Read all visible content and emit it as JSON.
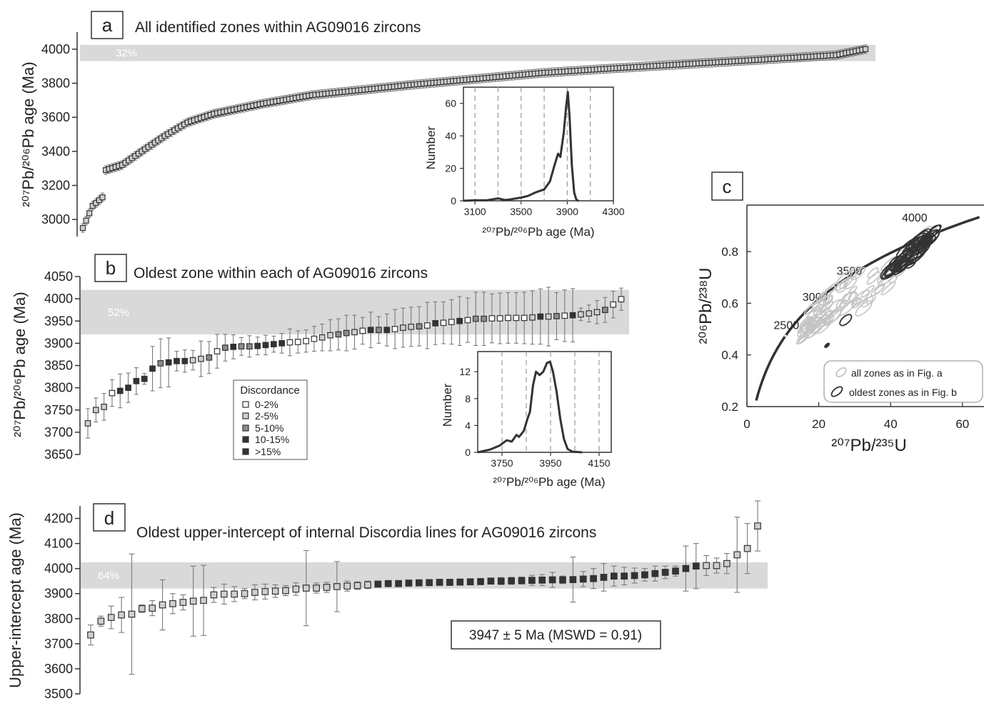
{
  "colors": {
    "band": "#d9d9d9",
    "axis": "#333333",
    "err": "#7a7a7a",
    "curve": "#333333",
    "c0": "#ffffff",
    "c1": "#cfcfcf",
    "c2": "#8c8c8c",
    "c3": "#333333",
    "ellLight": "#c4c4c4",
    "ellDark": "#333333"
  },
  "chart_data": [
    {
      "id": "a",
      "type": "scatter",
      "letter": "a",
      "title": "All identified zones within AG09016 zircons",
      "ylabel": "²⁰⁷Pb/²⁰⁶Pb age (Ma)",
      "ylim": [
        2900,
        4100
      ],
      "yticks": [
        {
          "v": 3000,
          "t": "3000"
        },
        {
          "v": 3200,
          "t": "3200"
        },
        {
          "v": 3400,
          "t": "3400"
        },
        {
          "v": 3600,
          "t": "3600"
        },
        {
          "v": 3800,
          "t": "3800"
        },
        {
          "v": 4000,
          "t": "4000"
        }
      ],
      "band": {
        "y0": 3930,
        "y1": 4025,
        "label": "32%"
      },
      "points_profile": {
        "n": 240,
        "curve": [
          [
            0,
            2950
          ],
          [
            3,
            3080
          ],
          [
            6,
            3130
          ],
          [
            7,
            3290
          ],
          [
            12,
            3320
          ],
          [
            18,
            3400
          ],
          [
            25,
            3490
          ],
          [
            32,
            3570
          ],
          [
            40,
            3620
          ],
          [
            55,
            3680
          ],
          [
            70,
            3730
          ],
          [
            100,
            3790
          ],
          [
            140,
            3860
          ],
          [
            160,
            3885
          ],
          [
            200,
            3930
          ],
          [
            230,
            3965
          ],
          [
            239,
            4000
          ]
        ],
        "err": 25
      },
      "inset": {
        "xlabel": "²⁰⁷Pb/²⁰⁶Pb age (Ma)",
        "ylabel": "Number",
        "xlim": [
          3000,
          4300
        ],
        "ylim": [
          0,
          70
        ],
        "xticks": [
          {
            "v": 3100,
            "t": "3100"
          },
          {
            "v": 3500,
            "t": "3500"
          },
          {
            "v": 3900,
            "t": "3900"
          },
          {
            "v": 4300,
            "t": "4300"
          }
        ],
        "yticks": [
          {
            "v": 0,
            "t": "0"
          },
          {
            "v": 20,
            "t": "20"
          },
          {
            "v": 40,
            "t": "40"
          },
          {
            "v": 60,
            "t": "60"
          }
        ],
        "dashed": [
          3100,
          3300,
          3500,
          3700,
          3900,
          4100
        ],
        "curve": [
          [
            3000,
            0
          ],
          [
            3100,
            0.3
          ],
          [
            3200,
            0.3
          ],
          [
            3300,
            1.5
          ],
          [
            3360,
            0.5
          ],
          [
            3400,
            0.8
          ],
          [
            3500,
            2
          ],
          [
            3560,
            3
          ],
          [
            3620,
            5
          ],
          [
            3700,
            7
          ],
          [
            3750,
            12
          ],
          [
            3790,
            22
          ],
          [
            3820,
            29
          ],
          [
            3840,
            27
          ],
          [
            3870,
            42
          ],
          [
            3890,
            58
          ],
          [
            3905,
            67
          ],
          [
            3920,
            52
          ],
          [
            3940,
            22
          ],
          [
            3960,
            5
          ],
          [
            3980,
            0.5
          ],
          [
            4000,
            0
          ]
        ]
      }
    },
    {
      "id": "b",
      "type": "scatter",
      "letter": "b",
      "title": "Oldest zone within each of AG09016 zircons",
      "ylabel": "²⁰⁷Pb/²⁰⁶Pb age (Ma)",
      "ylim": [
        3650,
        4050
      ],
      "yticks": [
        {
          "v": 3650,
          "t": "3650"
        },
        {
          "v": 3700,
          "t": "3700"
        },
        {
          "v": 3750,
          "t": "3750"
        },
        {
          "v": 3800,
          "t": "3800"
        },
        {
          "v": 3850,
          "t": "3850"
        },
        {
          "v": 3900,
          "t": "3900"
        },
        {
          "v": 3950,
          "t": "3950"
        },
        {
          "v": 4000,
          "t": "4000"
        },
        {
          "v": 4050,
          "t": "4050"
        }
      ],
      "band": {
        "y0": 3920,
        "y1": 4020,
        "label": "52%"
      },
      "points": [
        [
          3720,
          33,
          1
        ],
        [
          3750,
          27,
          1
        ],
        [
          3757,
          30,
          1
        ],
        [
          3788,
          30,
          0
        ],
        [
          3793,
          38,
          3
        ],
        [
          3800,
          33,
          4
        ],
        [
          3815,
          30,
          4
        ],
        [
          3820,
          12,
          3
        ],
        [
          3843,
          50,
          3
        ],
        [
          3855,
          55,
          2
        ],
        [
          3857,
          55,
          4
        ],
        [
          3860,
          22,
          4
        ],
        [
          3860,
          25,
          4
        ],
        [
          3862,
          22,
          1
        ],
        [
          3865,
          40,
          1
        ],
        [
          3868,
          36,
          2
        ],
        [
          3882,
          38,
          0
        ],
        [
          3890,
          30,
          2
        ],
        [
          3892,
          27,
          4
        ],
        [
          3893,
          20,
          2
        ],
        [
          3893,
          24,
          2
        ],
        [
          3894,
          20,
          3
        ],
        [
          3896,
          22,
          4
        ],
        [
          3898,
          18,
          4
        ],
        [
          3900,
          22,
          3
        ],
        [
          3902,
          30,
          0
        ],
        [
          3903,
          25,
          0
        ],
        [
          3905,
          25,
          0
        ],
        [
          3910,
          28,
          0
        ],
        [
          3913,
          30,
          1
        ],
        [
          3918,
          35,
          1
        ],
        [
          3920,
          35,
          2
        ],
        [
          3923,
          40,
          2
        ],
        [
          3925,
          38,
          1
        ],
        [
          3928,
          30,
          0
        ],
        [
          3930,
          40,
          3
        ],
        [
          3930,
          30,
          2
        ],
        [
          3930,
          36,
          3
        ],
        [
          3932,
          44,
          0
        ],
        [
          3935,
          44,
          1
        ],
        [
          3937,
          44,
          1
        ],
        [
          3938,
          44,
          2
        ],
        [
          3940,
          52,
          0
        ],
        [
          3945,
          48,
          3
        ],
        [
          3946,
          47,
          0
        ],
        [
          3948,
          50,
          0
        ],
        [
          3950,
          55,
          3
        ],
        [
          3952,
          50,
          0
        ],
        [
          3955,
          60,
          2
        ],
        [
          3955,
          60,
          2
        ],
        [
          3956,
          55,
          0
        ],
        [
          3956,
          57,
          0
        ],
        [
          3957,
          57,
          0
        ],
        [
          3957,
          57,
          0
        ],
        [
          3957,
          58,
          0
        ],
        [
          3958,
          60,
          1
        ],
        [
          3960,
          62,
          3
        ],
        [
          3960,
          66,
          1
        ],
        [
          3961,
          53,
          2
        ],
        [
          3962,
          58,
          0
        ],
        [
          3963,
          60,
          3
        ],
        [
          3965,
          14,
          1
        ],
        [
          3967,
          19,
          1
        ],
        [
          3970,
          26,
          1
        ],
        [
          3975,
          28,
          2
        ],
        [
          3987,
          30,
          0
        ],
        [
          3999,
          25,
          0
        ]
      ],
      "legend": {
        "title": "Discordance",
        "items": [
          "0-2%",
          "2-5%",
          "5-10%",
          "10-15%",
          ">15%"
        ]
      },
      "inset": {
        "xlabel": "²⁰⁷Pb/²⁰⁶Pb age (Ma)",
        "ylabel": "Number",
        "xlim": [
          3650,
          4200
        ],
        "ylim": [
          0,
          15
        ],
        "xticks": [
          {
            "v": 3750,
            "t": "3750"
          },
          {
            "v": 3950,
            "t": "3950"
          },
          {
            "v": 4150,
            "t": "4150"
          }
        ],
        "yticks": [
          {
            "v": 0,
            "t": "0"
          },
          {
            "v": 4,
            "t": "4"
          },
          {
            "v": 8,
            "t": "8"
          },
          {
            "v": 12,
            "t": "12"
          }
        ],
        "dashed": [
          3750,
          3850,
          3950,
          4050,
          4150
        ],
        "curve": [
          [
            3650,
            0
          ],
          [
            3700,
            0.4
          ],
          [
            3740,
            1
          ],
          [
            3770,
            1.8
          ],
          [
            3790,
            1.6
          ],
          [
            3810,
            2.6
          ],
          [
            3820,
            2.3
          ],
          [
            3840,
            3.2
          ],
          [
            3855,
            5
          ],
          [
            3865,
            6
          ],
          [
            3878,
            10
          ],
          [
            3890,
            12
          ],
          [
            3905,
            11.5
          ],
          [
            3920,
            12
          ],
          [
            3935,
            13.3
          ],
          [
            3948,
            13.5
          ],
          [
            3960,
            12
          ],
          [
            3975,
            9
          ],
          [
            3990,
            5
          ],
          [
            4005,
            2
          ],
          [
            4020,
            0.5
          ],
          [
            4040,
            0.1
          ],
          [
            4080,
            0
          ]
        ]
      }
    },
    {
      "id": "c",
      "type": "scatter",
      "letter": "c",
      "xlabel": "²⁰⁷Pb/²³⁵U",
      "ylabel": "²⁰⁶Pb/²³⁸U",
      "xlim": [
        0,
        66
      ],
      "ylim": [
        0.2,
        0.98
      ],
      "xticks": [
        {
          "v": 0,
          "t": "0"
        },
        {
          "v": 20,
          "t": "20"
        },
        {
          "v": 40,
          "t": "40"
        },
        {
          "v": 60,
          "t": "60"
        }
      ],
      "yticks": [
        {
          "v": 0.2,
          "t": "0.2"
        },
        {
          "v": 0.4,
          "t": "0.4"
        },
        {
          "v": 0.6,
          "t": "0.6"
        },
        {
          "v": 0.8,
          "t": "0.8"
        }
      ],
      "concordia_labels": [
        {
          "age": 2500,
          "t": "2500",
          "x": 11.0,
          "y": 0.5
        },
        {
          "age": 3000,
          "t": "3000",
          "x": 19.0,
          "y": 0.61
        },
        {
          "age": 3500,
          "t": "3500",
          "x": 28.5,
          "y": 0.71
        },
        {
          "age": 4000,
          "t": "4000",
          "x": 46.7,
          "y": 0.917
        }
      ],
      "legend": [
        "all zones as in Fig. a",
        "oldest zones as in Fig. b"
      ]
    },
    {
      "id": "d",
      "type": "scatter",
      "letter": "d",
      "title": "Oldest upper-intercept of internal Discordia lines for AG09016 zircons",
      "ylabel": "Upper-intercept age (Ma)",
      "ylim": [
        3500,
        4250
      ],
      "yticks": [
        {
          "v": 3500,
          "t": "3500"
        },
        {
          "v": 3600,
          "t": "3600"
        },
        {
          "v": 3700,
          "t": "3700"
        },
        {
          "v": 3800,
          "t": "3800"
        },
        {
          "v": 3900,
          "t": "3900"
        },
        {
          "v": 4000,
          "t": "4000"
        },
        {
          "v": 4100,
          "t": "4100"
        },
        {
          "v": 4200,
          "t": "4200"
        }
      ],
      "band": {
        "y0": 3920,
        "y1": 4025,
        "label": "64%"
      },
      "annotation": "3947 ± 5 Ma (MSWD = 0.91)",
      "points": [
        [
          3735,
          40,
          1
        ],
        [
          3790,
          20,
          1
        ],
        [
          3805,
          45,
          1
        ],
        [
          3815,
          70,
          1
        ],
        [
          3818,
          240,
          1
        ],
        [
          3840,
          15,
          1
        ],
        [
          3842,
          30,
          1
        ],
        [
          3855,
          100,
          1
        ],
        [
          3860,
          40,
          1
        ],
        [
          3865,
          30,
          1
        ],
        [
          3870,
          140,
          1
        ],
        [
          3873,
          140,
          1
        ],
        [
          3895,
          30,
          1
        ],
        [
          3898,
          40,
          1
        ],
        [
          3898,
          30,
          1
        ],
        [
          3900,
          20,
          1
        ],
        [
          3905,
          30,
          1
        ],
        [
          3908,
          30,
          1
        ],
        [
          3910,
          25,
          1
        ],
        [
          3912,
          20,
          1
        ],
        [
          3918,
          25,
          1
        ],
        [
          3922,
          150,
          1
        ],
        [
          3922,
          20,
          1
        ],
        [
          3925,
          20,
          1
        ],
        [
          3928,
          100,
          1
        ],
        [
          3930,
          20,
          1
        ],
        [
          3932,
          15,
          1
        ],
        [
          3935,
          15,
          1
        ],
        [
          3938,
          10,
          3
        ],
        [
          3940,
          10,
          3
        ],
        [
          3940,
          12,
          3
        ],
        [
          3942,
          10,
          3
        ],
        [
          3943,
          12,
          3
        ],
        [
          3944,
          12,
          3
        ],
        [
          3945,
          12,
          3
        ],
        [
          3945,
          12,
          3
        ],
        [
          3946,
          12,
          3
        ],
        [
          3947,
          12,
          3
        ],
        [
          3948,
          12,
          3
        ],
        [
          3950,
          12,
          3
        ],
        [
          3950,
          14,
          3
        ],
        [
          3951,
          14,
          3
        ],
        [
          3952,
          14,
          3
        ],
        [
          3953,
          20,
          3
        ],
        [
          3954,
          22,
          3
        ],
        [
          3955,
          30,
          3
        ],
        [
          3955,
          15,
          3
        ],
        [
          3956,
          90,
          3
        ],
        [
          3958,
          30,
          3
        ],
        [
          3960,
          40,
          3
        ],
        [
          3965,
          55,
          3
        ],
        [
          3970,
          40,
          3
        ],
        [
          3970,
          35,
          3
        ],
        [
          3972,
          30,
          3
        ],
        [
          3975,
          25,
          3
        ],
        [
          3980,
          30,
          3
        ],
        [
          3985,
          25,
          3
        ],
        [
          3990,
          20,
          3
        ],
        [
          4000,
          90,
          3
        ],
        [
          4010,
          90,
          3
        ],
        [
          4012,
          40,
          1
        ],
        [
          4012,
          30,
          1
        ],
        [
          4020,
          40,
          1
        ],
        [
          4055,
          150,
          1
        ],
        [
          4080,
          100,
          1
        ],
        [
          4170,
          100,
          1
        ]
      ]
    }
  ]
}
